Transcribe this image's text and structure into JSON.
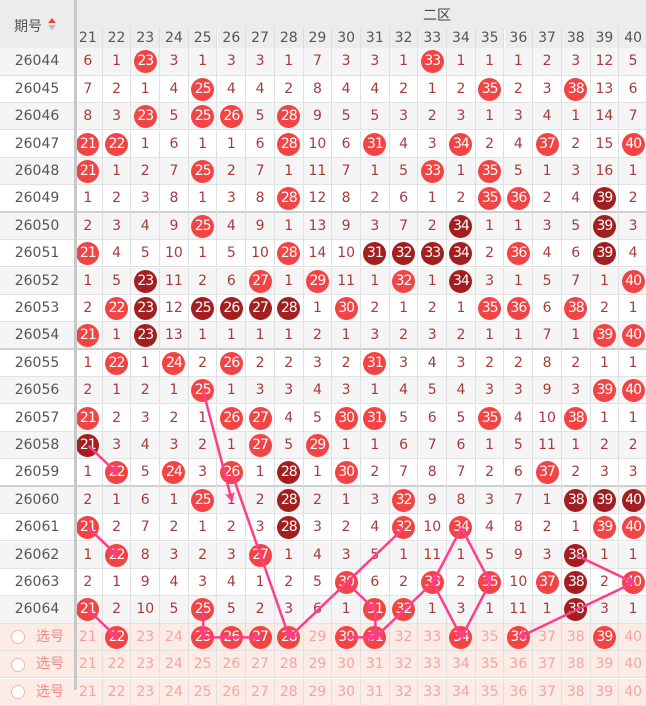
{
  "header": {
    "period_label": "期号",
    "zone_label": "二区",
    "sort_icon": "sort-up-down-icon"
  },
  "columns": [
    "21",
    "22",
    "23",
    "24",
    "25",
    "26",
    "27",
    "28",
    "29",
    "30",
    "31",
    "32",
    "33",
    "34",
    "35",
    "36",
    "37",
    "38",
    "39",
    "40"
  ],
  "colors": {
    "hit": "#f24444",
    "hit_dark": "#a31f1f",
    "miss_text": "#a83a3a",
    "trend_line": "#ff3d8a",
    "select_bg": "#fdece6"
  },
  "rows": [
    {
      "period": "26044",
      "cells": [
        "6",
        "1",
        "23",
        "3",
        "1",
        "3",
        "3",
        "1",
        "7",
        "3",
        "3",
        "1",
        "33",
        "1",
        "1",
        "1",
        "2",
        "3",
        "12",
        "5"
      ],
      "hits": [
        "23",
        "33"
      ],
      "dark": []
    },
    {
      "period": "26045",
      "cells": [
        "7",
        "2",
        "1",
        "4",
        "25",
        "4",
        "4",
        "2",
        "8",
        "4",
        "4",
        "2",
        "1",
        "2",
        "35",
        "2",
        "3",
        "38",
        "13",
        "6"
      ],
      "hits": [
        "25",
        "35",
        "38"
      ],
      "dark": []
    },
    {
      "period": "26046",
      "cells": [
        "8",
        "3",
        "23",
        "5",
        "25",
        "26",
        "5",
        "28",
        "9",
        "5",
        "5",
        "3",
        "2",
        "3",
        "1",
        "3",
        "4",
        "1",
        "14",
        "7"
      ],
      "hits": [
        "23",
        "25",
        "26",
        "28"
      ],
      "dark": []
    },
    {
      "period": "26047",
      "cells": [
        "21",
        "22",
        "1",
        "6",
        "1",
        "1",
        "6",
        "28",
        "10",
        "6",
        "31",
        "4",
        "3",
        "34",
        "2",
        "4",
        "37",
        "2",
        "15",
        "40"
      ],
      "hits": [
        "21",
        "22",
        "28",
        "31",
        "34",
        "37",
        "40"
      ],
      "dark": []
    },
    {
      "period": "26048",
      "cells": [
        "21",
        "1",
        "2",
        "7",
        "25",
        "2",
        "7",
        "1",
        "11",
        "7",
        "1",
        "5",
        "33",
        "1",
        "35",
        "5",
        "1",
        "3",
        "16",
        "1"
      ],
      "hits": [
        "21",
        "25",
        "33",
        "35"
      ],
      "dark": []
    },
    {
      "period": "26049",
      "cells": [
        "1",
        "2",
        "3",
        "8",
        "1",
        "3",
        "8",
        "28",
        "12",
        "8",
        "2",
        "6",
        "1",
        "2",
        "35",
        "36",
        "2",
        "4",
        "39",
        "2"
      ],
      "hits": [
        "28",
        "35",
        "36"
      ],
      "dark": [
        "39"
      ]
    },
    {
      "period": "26050",
      "cells": [
        "2",
        "3",
        "4",
        "9",
        "25",
        "4",
        "9",
        "1",
        "13",
        "9",
        "3",
        "7",
        "2",
        "34",
        "1",
        "1",
        "3",
        "5",
        "39",
        "3"
      ],
      "hits": [
        "25"
      ],
      "dark": [
        "34",
        "39"
      ]
    },
    {
      "period": "26051",
      "cells": [
        "21",
        "4",
        "5",
        "10",
        "1",
        "5",
        "10",
        "28",
        "14",
        "10",
        "31",
        "32",
        "33",
        "34",
        "2",
        "36",
        "4",
        "6",
        "39",
        "4"
      ],
      "hits": [
        "21",
        "28",
        "36"
      ],
      "dark": [
        "31",
        "32",
        "33",
        "34",
        "39"
      ]
    },
    {
      "period": "26052",
      "cells": [
        "1",
        "5",
        "23",
        "11",
        "2",
        "6",
        "27",
        "1",
        "29",
        "11",
        "1",
        "32",
        "1",
        "34",
        "3",
        "1",
        "5",
        "7",
        "1",
        "40"
      ],
      "hits": [
        "27",
        "29",
        "32",
        "40"
      ],
      "dark": [
        "23",
        "34"
      ]
    },
    {
      "period": "26053",
      "cells": [
        "2",
        "22",
        "23",
        "12",
        "25",
        "26",
        "27",
        "28",
        "1",
        "30",
        "2",
        "1",
        "2",
        "1",
        "35",
        "36",
        "6",
        "38",
        "2",
        "1"
      ],
      "hits": [
        "22",
        "30",
        "35",
        "36",
        "38"
      ],
      "dark": [
        "23",
        "25",
        "26",
        "27",
        "28"
      ]
    },
    {
      "period": "26054",
      "cells": [
        "21",
        "1",
        "23",
        "13",
        "1",
        "1",
        "1",
        "1",
        "2",
        "1",
        "3",
        "2",
        "3",
        "2",
        "1",
        "1",
        "7",
        "1",
        "39",
        "40"
      ],
      "hits": [
        "21",
        "39",
        "40"
      ],
      "dark": [
        "23"
      ]
    },
    {
      "period": "26055",
      "cells": [
        "1",
        "22",
        "1",
        "24",
        "2",
        "26",
        "2",
        "2",
        "3",
        "2",
        "31",
        "3",
        "4",
        "3",
        "2",
        "2",
        "8",
        "2",
        "1",
        "1"
      ],
      "hits": [
        "22",
        "24",
        "26",
        "31"
      ],
      "dark": []
    },
    {
      "period": "26056",
      "cells": [
        "2",
        "1",
        "2",
        "1",
        "25",
        "1",
        "3",
        "3",
        "4",
        "3",
        "1",
        "4",
        "5",
        "4",
        "3",
        "3",
        "9",
        "3",
        "39",
        "40"
      ],
      "hits": [
        "25",
        "39",
        "40"
      ],
      "dark": []
    },
    {
      "period": "26057",
      "cells": [
        "21",
        "2",
        "3",
        "2",
        "1",
        "26",
        "27",
        "4",
        "5",
        "30",
        "31",
        "5",
        "6",
        "5",
        "35",
        "4",
        "10",
        "38",
        "1",
        "1"
      ],
      "hits": [
        "21",
        "26",
        "27",
        "30",
        "31",
        "35",
        "38"
      ],
      "dark": []
    },
    {
      "period": "26058",
      "cells": [
        "21",
        "3",
        "4",
        "3",
        "2",
        "1",
        "27",
        "5",
        "29",
        "1",
        "1",
        "6",
        "7",
        "6",
        "1",
        "5",
        "11",
        "1",
        "2",
        "2"
      ],
      "hits": [
        "27",
        "29"
      ],
      "dark": [
        "21"
      ]
    },
    {
      "period": "26059",
      "cells": [
        "1",
        "22",
        "5",
        "24",
        "3",
        "26",
        "1",
        "28",
        "1",
        "30",
        "2",
        "7",
        "8",
        "7",
        "2",
        "6",
        "37",
        "2",
        "3",
        "3"
      ],
      "hits": [
        "22",
        "24",
        "26",
        "30",
        "37"
      ],
      "dark": [
        "28"
      ]
    },
    {
      "period": "26060",
      "cells": [
        "2",
        "1",
        "6",
        "1",
        "25",
        "1",
        "2",
        "28",
        "2",
        "1",
        "3",
        "32",
        "9",
        "8",
        "3",
        "7",
        "1",
        "38",
        "39",
        "40"
      ],
      "hits": [
        "25",
        "32"
      ],
      "dark": [
        "28",
        "38",
        "39",
        "40"
      ]
    },
    {
      "period": "26061",
      "cells": [
        "21",
        "2",
        "7",
        "2",
        "1",
        "2",
        "3",
        "28",
        "3",
        "2",
        "4",
        "32",
        "10",
        "34",
        "4",
        "8",
        "2",
        "1",
        "39",
        "40"
      ],
      "hits": [
        "21",
        "32",
        "34",
        "39",
        "40"
      ],
      "dark": [
        "28"
      ]
    },
    {
      "period": "26062",
      "cells": [
        "1",
        "22",
        "8",
        "3",
        "2",
        "3",
        "27",
        "1",
        "4",
        "3",
        "5",
        "1",
        "11",
        "1",
        "5",
        "9",
        "3",
        "38",
        "1",
        "1"
      ],
      "hits": [
        "22",
        "27"
      ],
      "dark": [
        "38"
      ]
    },
    {
      "period": "26063",
      "cells": [
        "2",
        "1",
        "9",
        "4",
        "3",
        "4",
        "1",
        "2",
        "5",
        "30",
        "6",
        "2",
        "33",
        "2",
        "35",
        "10",
        "37",
        "38",
        "2",
        "40"
      ],
      "hits": [
        "30",
        "33",
        "35",
        "37",
        "40"
      ],
      "dark": [
        "38"
      ]
    },
    {
      "period": "26064",
      "cells": [
        "21",
        "2",
        "10",
        "5",
        "25",
        "5",
        "2",
        "3",
        "6",
        "1",
        "31",
        "32",
        "1",
        "3",
        "1",
        "11",
        "1",
        "38",
        "3",
        "1"
      ],
      "hits": [
        "21",
        "25",
        "31",
        "32"
      ],
      "dark": [
        "38"
      ]
    }
  ],
  "select_rows": [
    {
      "label": "选号",
      "selected": [
        "22",
        "25",
        "26",
        "27",
        "28",
        "30",
        "31",
        "34",
        "36",
        "39"
      ]
    },
    {
      "label": "选号",
      "selected": []
    },
    {
      "label": "选号",
      "selected": []
    }
  ]
}
